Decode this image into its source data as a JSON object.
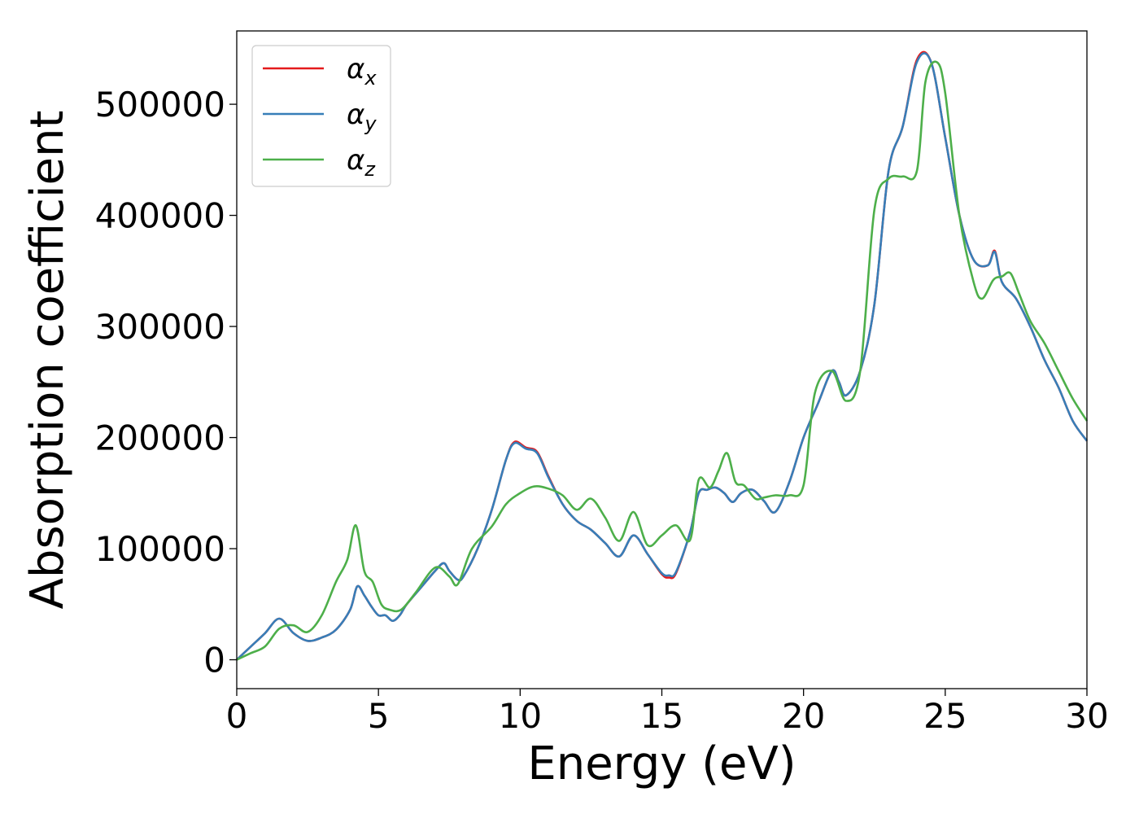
{
  "chart_data": {
    "type": "line",
    "xlabel": "Energy (eV)",
    "ylabel": "Absorption coefficient",
    "xlim": [
      0,
      30
    ],
    "ylim": [
      -26000,
      566000
    ],
    "xticks": [
      0,
      5,
      10,
      15,
      20,
      25,
      30
    ],
    "yticks": [
      0,
      100000,
      200000,
      300000,
      400000,
      500000
    ],
    "grid": false,
    "legend": {
      "placement": "top-left"
    },
    "series": [
      {
        "name": "α_x",
        "base": "α",
        "sub": "x",
        "color": "#e41a1c",
        "x": [
          0,
          0.5,
          1,
          1.5,
          2,
          2.5,
          3,
          3.5,
          4,
          4.25,
          4.5,
          4.75,
          5,
          5.25,
          5.5,
          5.75,
          6,
          6.5,
          7,
          7.3,
          7.5,
          7.8,
          8,
          8.5,
          9,
          9.5,
          9.8,
          10.2,
          10.6,
          11,
          11.5,
          12,
          12.5,
          13,
          13.5,
          14,
          14.5,
          15,
          15.25,
          15.5,
          16,
          16.3,
          16.6,
          16.9,
          17.2,
          17.5,
          17.8,
          18.2,
          18.6,
          19,
          19.5,
          20,
          20.5,
          21,
          21.25,
          21.5,
          22,
          22.5,
          23,
          23.5,
          24,
          24.5,
          25,
          25.5,
          26,
          26.5,
          26.75,
          27,
          27.5,
          28,
          28.5,
          29,
          29.5,
          30
        ],
        "y": [
          0,
          12000,
          24000,
          37000,
          24000,
          17000,
          20000,
          27000,
          45000,
          66000,
          58000,
          48000,
          40000,
          40000,
          35000,
          40000,
          50000,
          65000,
          80000,
          87000,
          80000,
          72000,
          75000,
          100000,
          135000,
          180000,
          196000,
          191000,
          187000,
          165000,
          140000,
          125000,
          117000,
          105000,
          93000,
          112000,
          95000,
          77000,
          74000,
          78000,
          115000,
          150000,
          153000,
          155000,
          150000,
          142000,
          150000,
          153000,
          143000,
          133000,
          160000,
          200000,
          230000,
          260000,
          250000,
          238000,
          260000,
          320000,
          440000,
          480000,
          540000,
          538000,
          470000,
          400000,
          360000,
          355000,
          368000,
          340000,
          325000,
          300000,
          270000,
          245000,
          215000,
          197000
        ]
      },
      {
        "name": "α_y",
        "base": "α",
        "sub": "y",
        "color": "#377eb8",
        "x": [
          0,
          0.5,
          1,
          1.5,
          2,
          2.5,
          3,
          3.5,
          4,
          4.25,
          4.5,
          4.75,
          5,
          5.25,
          5.5,
          5.75,
          6,
          6.5,
          7,
          7.3,
          7.5,
          7.8,
          8,
          8.5,
          9,
          9.5,
          9.8,
          10.2,
          10.6,
          11,
          11.5,
          12,
          12.5,
          13,
          13.5,
          14,
          14.5,
          15,
          15.25,
          15.5,
          16,
          16.3,
          16.6,
          16.9,
          17.2,
          17.5,
          17.8,
          18.2,
          18.6,
          19,
          19.5,
          20,
          20.5,
          21,
          21.25,
          21.5,
          22,
          22.5,
          23,
          23.5,
          24,
          24.5,
          25,
          25.5,
          26,
          26.5,
          26.75,
          27,
          27.5,
          28,
          28.5,
          29,
          29.5,
          30
        ],
        "y": [
          0,
          12000,
          24000,
          37000,
          24000,
          17000,
          20000,
          27000,
          45000,
          66000,
          58000,
          48000,
          40000,
          40000,
          35000,
          40000,
          50000,
          65000,
          80000,
          87000,
          80000,
          72000,
          75000,
          100000,
          135000,
          180000,
          195000,
          190000,
          186000,
          164000,
          140000,
          125000,
          117000,
          105000,
          93000,
          112000,
          95000,
          78000,
          76000,
          79000,
          115000,
          150000,
          153000,
          155000,
          150000,
          142000,
          150000,
          153000,
          143000,
          133000,
          160000,
          200000,
          230000,
          260000,
          250000,
          238000,
          260000,
          320000,
          440000,
          480000,
          538000,
          538000,
          470000,
          400000,
          360000,
          355000,
          367000,
          340000,
          325000,
          300000,
          270000,
          245000,
          215000,
          197000
        ]
      },
      {
        "name": "α_z",
        "base": "α",
        "sub": "z",
        "color": "#4daf4a",
        "x": [
          0,
          0.5,
          1,
          1.5,
          2,
          2.5,
          3,
          3.5,
          3.9,
          4.2,
          4.5,
          4.8,
          5.1,
          5.4,
          5.8,
          6.3,
          7,
          7.5,
          7.8,
          8.3,
          9,
          9.5,
          10,
          10.5,
          11,
          11.5,
          12,
          12.5,
          13,
          13.5,
          14,
          14.5,
          15,
          15.5,
          16,
          16.3,
          16.7,
          17,
          17.3,
          17.6,
          17.9,
          18.3,
          18.6,
          19,
          19.5,
          20,
          20.4,
          21,
          21.5,
          22,
          22.5,
          23,
          23.5,
          24,
          24.3,
          24.7,
          25,
          25.5,
          26,
          26.3,
          26.7,
          27,
          27.3,
          27.6,
          28,
          28.5,
          29,
          29.5,
          30
        ],
        "y": [
          0,
          6000,
          12000,
          28000,
          31000,
          25000,
          40000,
          70000,
          90000,
          121000,
          80000,
          70000,
          50000,
          45000,
          45000,
          60000,
          83000,
          75000,
          68000,
          100000,
          120000,
          140000,
          150000,
          156000,
          154000,
          148000,
          135000,
          145000,
          128000,
          107000,
          133000,
          103000,
          112000,
          121000,
          108000,
          162000,
          155000,
          170000,
          186000,
          160000,
          157000,
          145000,
          146000,
          148000,
          148000,
          157000,
          240000,
          260000,
          233000,
          260000,
          405000,
          433000,
          435000,
          440000,
          520000,
          538000,
          510000,
          400000,
          340000,
          325000,
          342000,
          345000,
          348000,
          330000,
          305000,
          285000,
          260000,
          235000,
          215000
        ]
      }
    ]
  }
}
